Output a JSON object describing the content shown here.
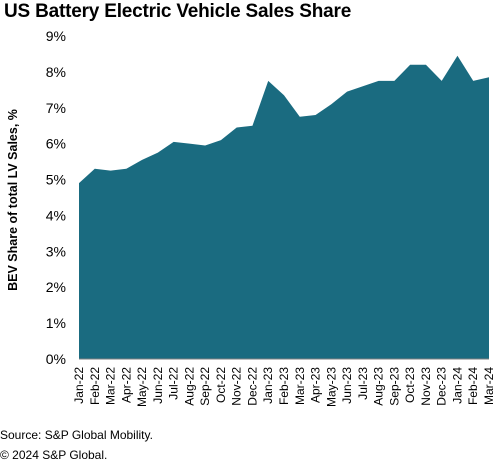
{
  "chart_data": {
    "type": "area",
    "title": "US Battery Electric Vehicle Sales Share",
    "ylabel": "BEV Share of total LV Sales, %",
    "xlabel": "",
    "ylim": [
      0,
      9
    ],
    "yticks": [
      "0%",
      "1%",
      "2%",
      "3%",
      "4%",
      "5%",
      "6%",
      "7%",
      "8%",
      "9%"
    ],
    "categories": [
      "Jan-22",
      "Feb-22",
      "Mar-22",
      "Apr-22",
      "May-22",
      "Jun-22",
      "Jul-22",
      "Aug-22",
      "Sep-22",
      "Oct-22",
      "Nov-22",
      "Dec-22",
      "Jan-23",
      "Feb-23",
      "Mar-23",
      "Apr-23",
      "May-23",
      "Jun-23",
      "Jul-23",
      "Aug-23",
      "Sep-23",
      "Oct-23",
      "Nov-23",
      "Dec-23",
      "Jan-24",
      "Feb-24",
      "Mar-24"
    ],
    "values": [
      4.9,
      5.3,
      5.25,
      5.3,
      5.55,
      5.75,
      6.05,
      6.0,
      5.95,
      6.1,
      6.45,
      6.5,
      7.75,
      7.35,
      6.75,
      6.8,
      7.1,
      7.45,
      7.6,
      7.75,
      7.75,
      8.2,
      8.2,
      7.75,
      8.45,
      7.75,
      7.85
    ],
    "color": "#1a6b80",
    "grid": false,
    "legend": "none"
  },
  "source": "Source: S&P Global Mobility.",
  "copyright": "© 2024 S&P Global."
}
